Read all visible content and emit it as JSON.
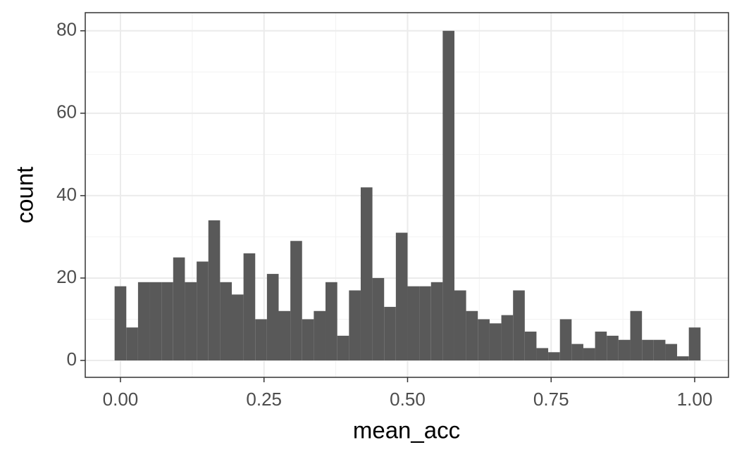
{
  "chart_data": {
    "type": "histogram",
    "x_label": "mean_acc",
    "y_label": "count",
    "bins": [
      -0.0102,
      0.0102,
      0.0306,
      0.051,
      0.0714,
      0.0918,
      0.1122,
      0.1327,
      0.1531,
      0.1735,
      0.1939,
      0.2143,
      0.2347,
      0.2551,
      0.2755,
      0.2959,
      0.3163,
      0.3367,
      0.3571,
      0.3776,
      0.398,
      0.4184,
      0.4388,
      0.4592,
      0.4796,
      0.5,
      0.5204,
      0.5408,
      0.5612,
      0.5816,
      0.602,
      0.6224,
      0.6429,
      0.6633,
      0.6837,
      0.7041,
      0.7245,
      0.7449,
      0.7653,
      0.7857,
      0.8061,
      0.8265,
      0.8469,
      0.8673,
      0.8878,
      0.9082,
      0.9286,
      0.949,
      0.9694,
      0.9898,
      1.0102
    ],
    "values": [
      18,
      8,
      19,
      19,
      19,
      25,
      19,
      24,
      34,
      19,
      16,
      26,
      10,
      21,
      12,
      29,
      10,
      12,
      19,
      6,
      17,
      42,
      20,
      13,
      31,
      18,
      18,
      19,
      80,
      17,
      12,
      10,
      9,
      11,
      17,
      7,
      3,
      2,
      10,
      4,
      3,
      7,
      6,
      5,
      12,
      5,
      5,
      4,
      1,
      8
    ],
    "color": "#595959",
    "xlim": [
      -0.0613,
      1.0589
    ],
    "ylim": [
      -4.1,
      84.4
    ],
    "xticks": [
      {
        "value": 0,
        "label": "0.00"
      },
      {
        "value": 0.25,
        "label": "0.25"
      },
      {
        "value": 0.5,
        "label": "0.50"
      },
      {
        "value": 0.75,
        "label": "0.75"
      },
      {
        "value": 1,
        "label": "1.00"
      }
    ],
    "yticks": [
      0,
      20,
      40,
      60,
      80
    ],
    "grid": true
  }
}
